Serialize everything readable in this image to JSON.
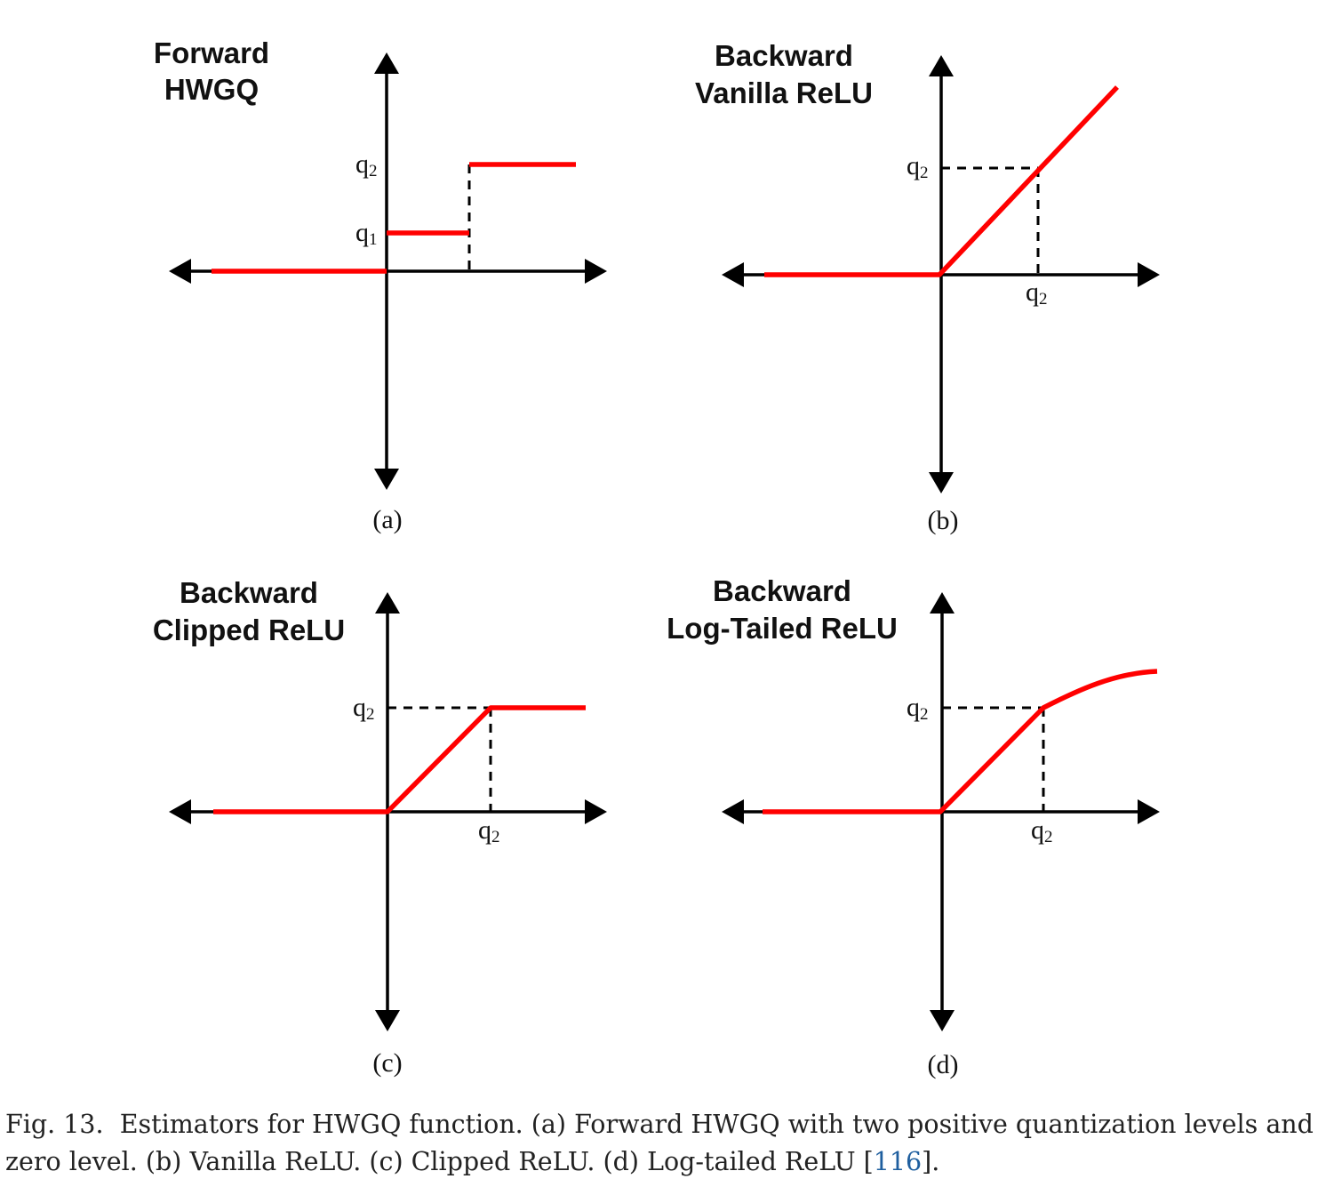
{
  "panels": [
    {
      "id": "a",
      "title": [
        "Forward",
        "HWGQ"
      ],
      "label": "(a)",
      "tick_y": [
        "q",
        "1",
        "q",
        "2"
      ],
      "tick_x": null
    },
    {
      "id": "b",
      "title": [
        "Backward",
        "Vanilla ReLU"
      ],
      "label": "(b)",
      "tick_y": [
        "q",
        "2"
      ],
      "tick_x": [
        "q",
        "2"
      ]
    },
    {
      "id": "c",
      "title": [
        "Backward",
        "Clipped ReLU"
      ],
      "label": "(c)",
      "tick_y": [
        "q",
        "2"
      ],
      "tick_x": [
        "q",
        "2"
      ]
    },
    {
      "id": "d",
      "title": [
        "Backward",
        "Log-Tailed ReLU"
      ],
      "label": "(d)",
      "tick_y": [
        "q",
        "2"
      ],
      "tick_x": [
        "q",
        "2"
      ]
    }
  ],
  "colors": {
    "curve": "#ff0000",
    "axis": "#000000",
    "dash": "#000000"
  },
  "caption": {
    "prefix": "Fig. 13.",
    "text": "Estimators for HWGQ function. (a) Forward HWGQ with two positive quantization levels and zero level. (b) Vanilla ReLU. (c) Clipped ReLU. (d) Log-tailed ReLU [",
    "ref": "116",
    "suffix": "]."
  }
}
